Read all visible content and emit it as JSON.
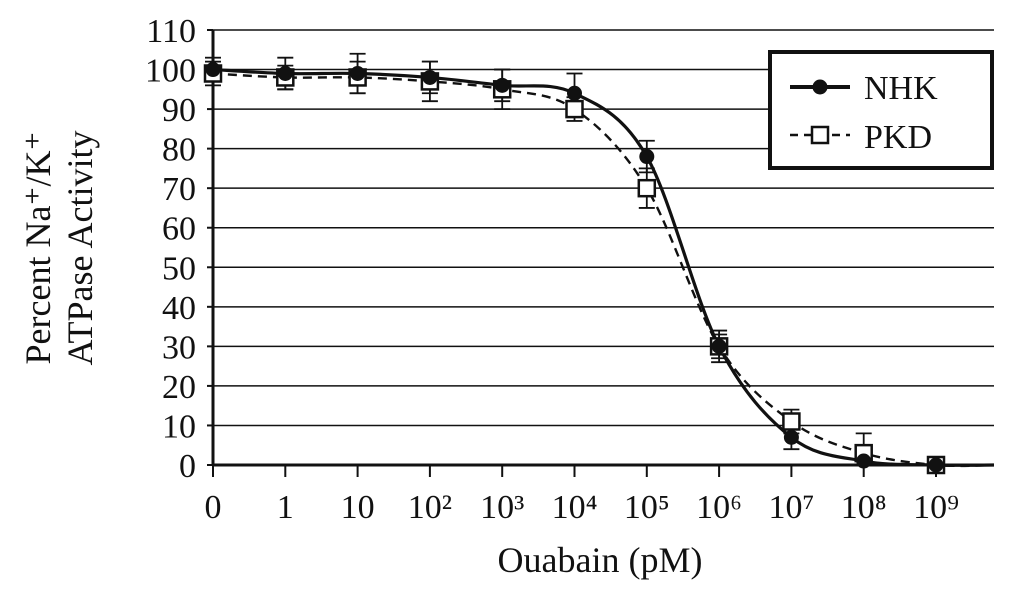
{
  "chart_data": {
    "type": "line",
    "title": "",
    "xlabel": "Ouabain (pM)",
    "ylabel_line1": "Percent Na⁺/K⁺",
    "ylabel_line2": "ATPase Activity",
    "ylim": [
      0,
      110
    ],
    "yticks": [
      "0",
      "10",
      "20",
      "30",
      "40",
      "50",
      "60",
      "70",
      "80",
      "90",
      "100",
      "110"
    ],
    "categories": [
      "0",
      "1",
      "10",
      "10²",
      "10³",
      "10⁴",
      "10⁵",
      "10⁶",
      "10⁷",
      "10⁸",
      "10⁹"
    ],
    "x_scale": "log (categorical ticks, 0 at origin)",
    "grid": "horizontal",
    "legend_position": "top-right",
    "series": [
      {
        "name": "NHK",
        "marker": "filled-circle",
        "line": "solid",
        "values": [
          100,
          99,
          99,
          98,
          96,
          94,
          78,
          30,
          7,
          1,
          0
        ],
        "errors": [
          3,
          4,
          5,
          4,
          4,
          5,
          4,
          4,
          3,
          2,
          1
        ]
      },
      {
        "name": "PKD",
        "marker": "open-square",
        "line": "dashed",
        "values": [
          99,
          98,
          98,
          97,
          95,
          90,
          70,
          30,
          11,
          3,
          0
        ],
        "errors": [
          3,
          3,
          4,
          5,
          5,
          3,
          5,
          3,
          3,
          5,
          1
        ]
      }
    ]
  }
}
